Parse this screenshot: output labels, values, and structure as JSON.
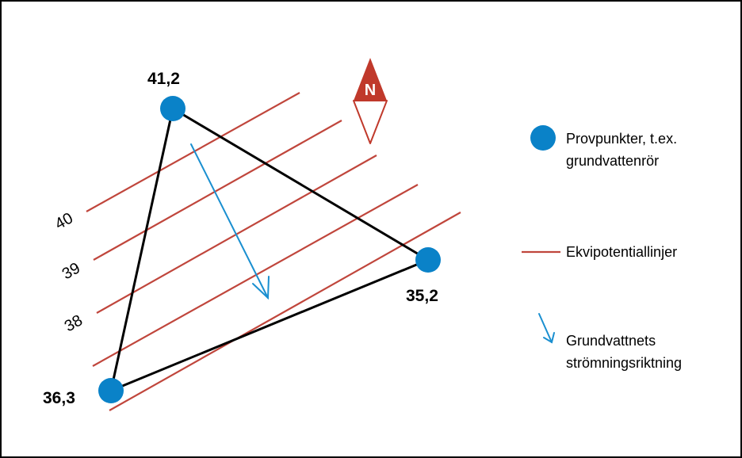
{
  "colors": {
    "point": "#0a82c8",
    "equipotential": "#c0463c",
    "arrow": "#1a8fd0",
    "compass": "#c0392b",
    "triangle": "#000000"
  },
  "points": [
    {
      "label": "41,2"
    },
    {
      "label": "35,2"
    },
    {
      "label": "36,3"
    }
  ],
  "isolines": [
    {
      "label": "40"
    },
    {
      "label": "39"
    },
    {
      "label": "38"
    }
  ],
  "compass": {
    "label": "N",
    "icon": "north-compass-icon"
  },
  "legend": {
    "points": {
      "line1": "Provpunkter, t.ex.",
      "line2": "grundvattenrör"
    },
    "equipotential": {
      "label": "Ekvipotentiallinjer"
    },
    "flow": {
      "line1": "Grundvattnets",
      "line2": "strömningsriktning"
    }
  }
}
